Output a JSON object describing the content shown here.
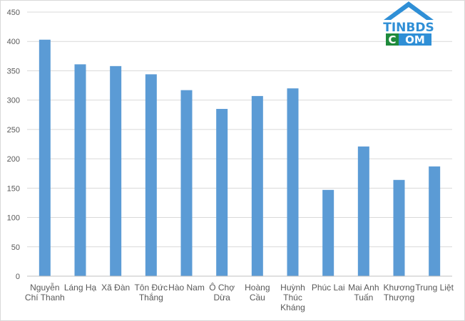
{
  "chart_data": {
    "type": "bar",
    "categories": [
      [
        "Nguyễn",
        "Chí Thanh"
      ],
      [
        "Láng Hạ"
      ],
      [
        "Xã Đàn"
      ],
      [
        "Tôn Đức",
        "Thắng"
      ],
      [
        "Hào Nam"
      ],
      [
        "Ô Chợ",
        "Dừa"
      ],
      [
        "Hoàng",
        "Cầu"
      ],
      [
        "Huỳnh",
        "Thúc",
        "Kháng"
      ],
      [
        "Phúc Lai"
      ],
      [
        "Mai Anh",
        "Tuấn"
      ],
      [
        "Khương",
        "Thượng"
      ],
      [
        "Trung Liệt"
      ]
    ],
    "values": [
      403,
      361,
      358,
      344,
      317,
      285,
      307,
      320,
      147,
      221,
      164,
      187
    ],
    "title": "",
    "xlabel": "",
    "ylabel": "",
    "ylim": [
      0,
      450
    ],
    "yticks": [
      0,
      50,
      100,
      150,
      200,
      250,
      300,
      350,
      400,
      450
    ],
    "grid": true,
    "legend": "none",
    "bar_color": "#5b9bd5",
    "grid_color": "#d9d9d9"
  },
  "logo": {
    "line1": "TINBDS",
    "line2_a": "C",
    "line2_b": "OM",
    "roof_color": "#2f8fd6",
    "green": "#1f8a3c",
    "blue": "#2f8fd6"
  }
}
